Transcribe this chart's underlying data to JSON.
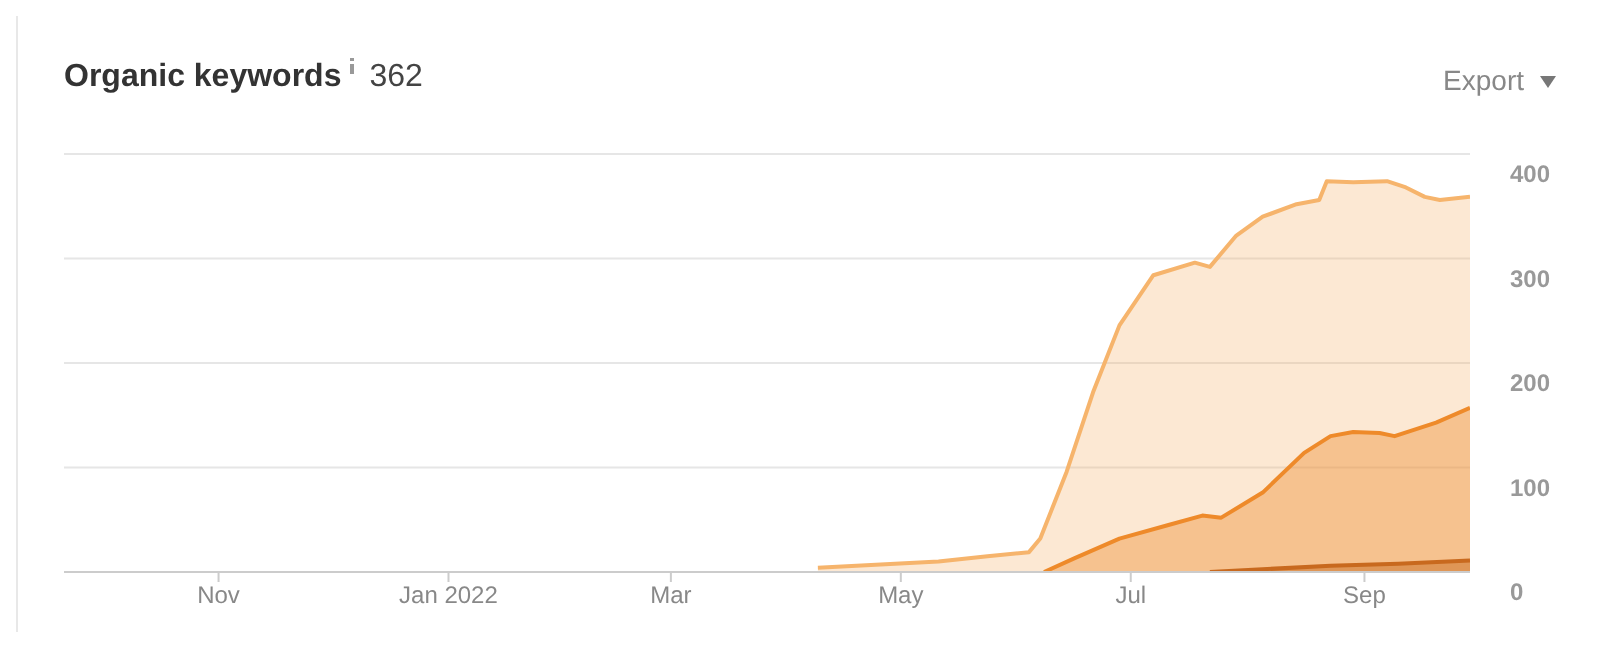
{
  "chart_data": {
    "type": "area",
    "title": "Organic keywords",
    "subtitle": "362",
    "annotations": [
      "Export"
    ],
    "xlim": [
      "2021-09-21",
      "2022-09-29"
    ],
    "xticks": [
      {
        "value": "2021-11-01",
        "label": "Nov"
      },
      {
        "value": "2022-01-01",
        "label": "Jan 2022"
      },
      {
        "value": "2022-03-01",
        "label": "Mar"
      },
      {
        "value": "2022-05-01",
        "label": "May"
      },
      {
        "value": "2022-07-01",
        "label": "Jul"
      },
      {
        "value": "2022-09-01",
        "label": "Sep"
      }
    ],
    "ylim": [
      0,
      400
    ],
    "yticks": [
      0,
      100,
      200,
      300,
      400
    ],
    "grid": "y",
    "legend": false,
    "series": [
      {
        "color": "#f6b46c",
        "x": [
          "2022-04-09",
          "2022-05-11",
          "2022-05-24",
          "2022-06-04",
          "2022-06-07",
          "2022-06-14",
          "2022-06-21",
          "2022-06-28",
          "2022-07-07",
          "2022-07-18",
          "2022-07-22",
          "2022-07-29",
          "2022-08-05",
          "2022-08-14",
          "2022-08-20",
          "2022-08-22",
          "2022-08-29",
          "2022-09-07",
          "2022-09-12",
          "2022-09-17",
          "2022-09-21",
          "2022-09-29"
        ],
        "values": [
          4,
          10,
          15,
          19,
          32,
          96,
          172,
          236,
          284,
          296,
          292,
          322,
          340,
          352,
          356,
          374,
          373,
          374,
          368,
          359,
          356,
          359
        ]
      },
      {
        "color": "#ee8a2a",
        "x": [
          "2022-06-08",
          "2022-06-16",
          "2022-06-28",
          "2022-07-11",
          "2022-07-20",
          "2022-07-25",
          "2022-08-05",
          "2022-08-16",
          "2022-08-23",
          "2022-08-29",
          "2022-09-05",
          "2022-09-09",
          "2022-09-20",
          "2022-09-29"
        ],
        "values": [
          0,
          13,
          32,
          45,
          54,
          52,
          76,
          114,
          130,
          134,
          133,
          130,
          143,
          157
        ]
      },
      {
        "color": "#c8691e",
        "x": [
          "2022-07-22",
          "2022-08-23",
          "2022-09-10",
          "2022-09-29"
        ],
        "values": [
          0,
          6,
          8,
          11
        ]
      }
    ]
  }
}
